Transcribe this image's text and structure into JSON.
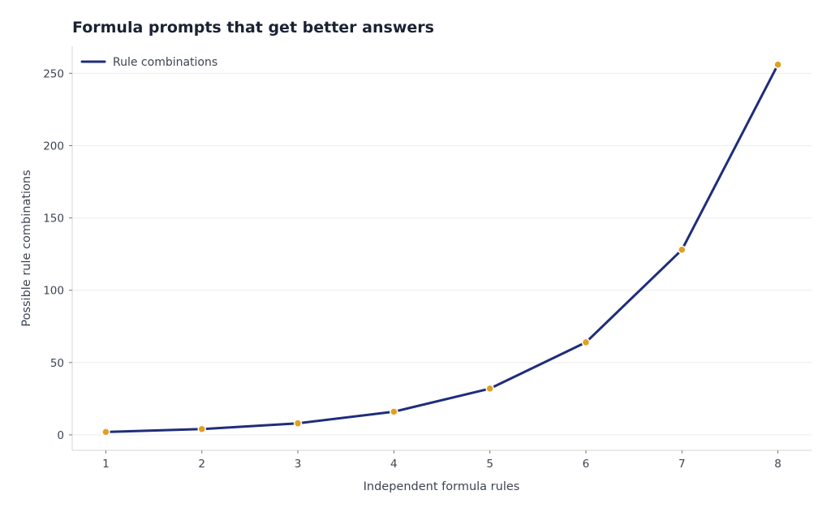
{
  "chart_data": {
    "type": "line",
    "title": "Formula prompts that get better answers",
    "xlabel": "Independent formula rules",
    "ylabel": "Possible rule combinations",
    "x": [
      1,
      2,
      3,
      4,
      5,
      6,
      7,
      8
    ],
    "series": [
      {
        "name": "Rule combinations",
        "values": [
          2,
          4,
          8,
          16,
          32,
          64,
          128,
          256
        ],
        "line_color": "#1f2d7a",
        "marker_color": "#e0a020"
      }
    ],
    "x_ticks": [
      1,
      2,
      3,
      4,
      5,
      6,
      7,
      8
    ],
    "y_ticks": [
      0,
      50,
      100,
      150,
      200,
      250
    ],
    "xlim": [
      0.65,
      8.35
    ],
    "ylim": [
      -10.7,
      268.7
    ],
    "grid": "horizontal",
    "legend_position": "top-left"
  }
}
